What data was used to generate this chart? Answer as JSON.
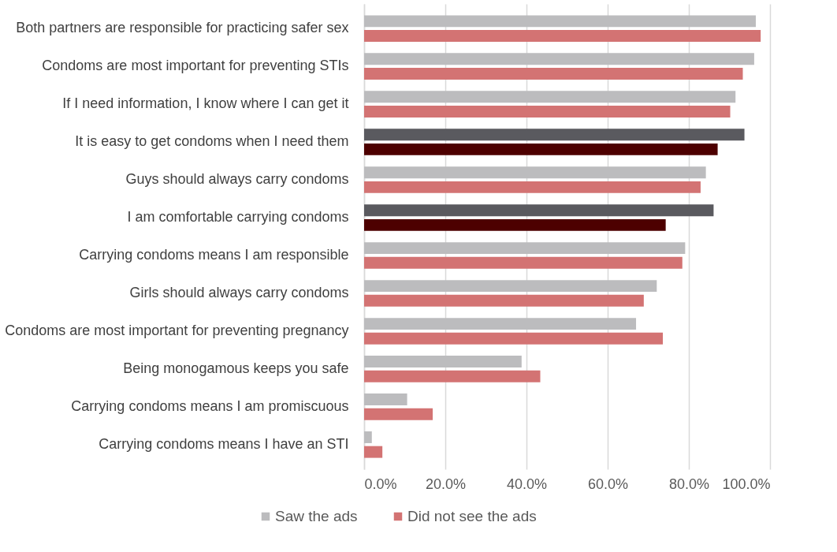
{
  "chart_data": {
    "type": "bar",
    "orientation": "horizontal",
    "categories": [
      "Both partners are responsible for practicing safer sex",
      "Condoms are most important for preventing STIs",
      "If I need information, I know where I can get it",
      "It is easy to get condoms when I need them",
      "Guys should always carry condoms",
      "I am comfortable carrying condoms",
      "Carrying condoms means I am responsible",
      "Girls should always carry condoms",
      "Condoms are most important for preventing pregnancy",
      "Being monogamous keeps you safe",
      "Carrying condoms means I am promiscuous",
      "Carrying condoms means I have an STI"
    ],
    "series": [
      {
        "name": "Saw the ads",
        "color": "#bcbcbe",
        "colors": [
          "#bcbcbe",
          "#bcbcbe",
          "#bcbcbe",
          "#5a5a5f",
          "#bcbcbe",
          "#5a5a5f",
          "#bcbcbe",
          "#bcbcbe",
          "#bcbcbe",
          "#bcbcbe",
          "#bcbcbe",
          "#bcbcbe"
        ],
        "values": [
          96.5,
          96.1,
          91.5,
          93.7,
          84.2,
          86.1,
          79.1,
          72.1,
          67.0,
          38.8,
          10.6,
          1.9
        ]
      },
      {
        "name": "Did not see the ads",
        "color": "#d37373",
        "colors": [
          "#d37373",
          "#d37373",
          "#d37373",
          "#4d0000",
          "#d37373",
          "#4d0000",
          "#d37373",
          "#d37373",
          "#d37373",
          "#d37373",
          "#d37373",
          "#d37373"
        ],
        "values": [
          97.7,
          93.3,
          90.2,
          87.1,
          82.9,
          74.3,
          78.4,
          68.9,
          73.6,
          43.4,
          16.9,
          4.5
        ]
      }
    ],
    "xlim": [
      0,
      100
    ],
    "xticks": [
      {
        "value": 0,
        "label": "0.0%"
      },
      {
        "value": 20,
        "label": "20.0%"
      },
      {
        "value": 40,
        "label": "40.0%"
      },
      {
        "value": 60,
        "label": "60.0%"
      },
      {
        "value": 80,
        "label": "80.0%"
      },
      {
        "value": 100,
        "label": "100.0%"
      }
    ],
    "grid": "x",
    "legend": "bottom"
  }
}
